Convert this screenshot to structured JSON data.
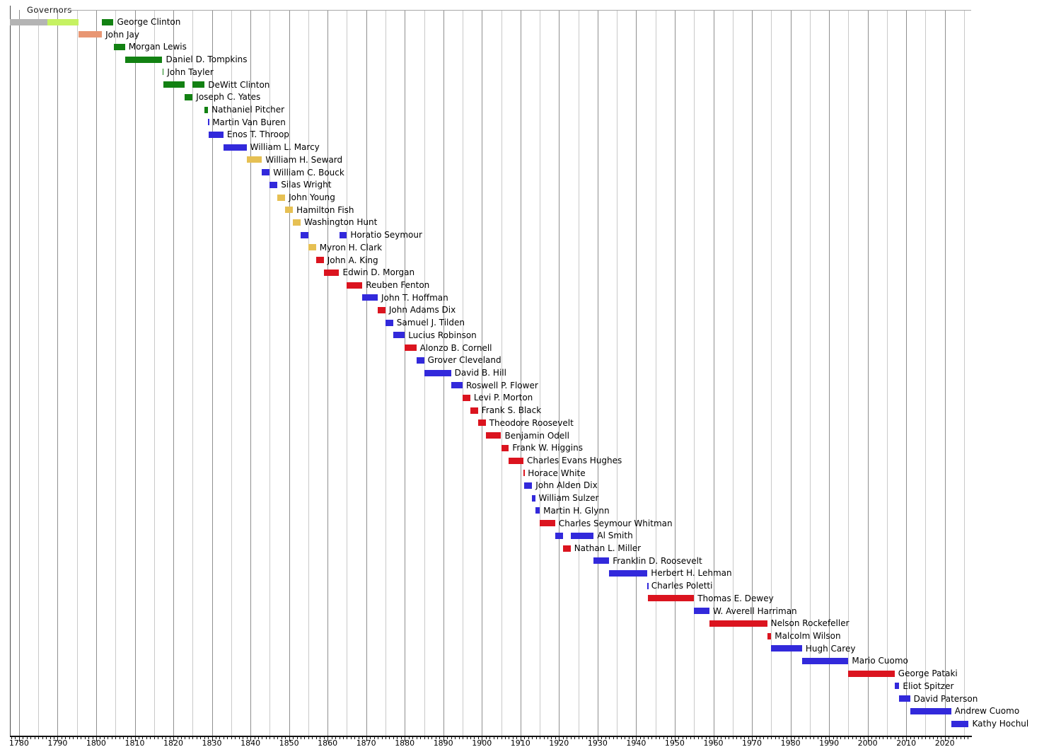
{
  "chart_data": {
    "type": "timeline",
    "title": "Governors",
    "x_axis": {
      "domain": [
        1777.55,
        2026.75
      ],
      "label_start": 1780,
      "label_end": 2020,
      "label_step": 10,
      "grid_step": 5,
      "minor_tick_step": 1,
      "tick_labels": [
        "1780",
        "1790",
        "1800",
        "1810",
        "1820",
        "1830",
        "1840",
        "1850",
        "1860",
        "1870",
        "1880",
        "1890",
        "1900",
        "1910",
        "1920",
        "1930",
        "1940",
        "1950",
        "1960",
        "1970",
        "1980",
        "1990",
        "2000",
        "2010",
        "2020"
      ]
    },
    "party_colors": {
      "independent": "#B4B4B4",
      "anti_federalist": "#C6F262",
      "federalist": "#E89673",
      "democratic_republican": "#128112",
      "democratic": "#3229DB",
      "whig": "#E6C053",
      "republican": "#DB141F"
    },
    "governors": [
      {
        "name": "George Clinton",
        "terms": [
          {
            "from": 1777.58,
            "till": 1787.3,
            "party": "independent"
          },
          {
            "from": 1787.3,
            "till": 1795.5,
            "party": "anti_federalist"
          },
          {
            "from": 1801.5,
            "till": 1804.5,
            "party": "democratic_republican"
          }
        ]
      },
      {
        "name": "John Jay",
        "terms": [
          {
            "from": 1795.5,
            "till": 1801.5,
            "party": "federalist"
          }
        ]
      },
      {
        "name": "Morgan Lewis",
        "terms": [
          {
            "from": 1804.5,
            "till": 1807.5,
            "party": "democratic_republican"
          }
        ]
      },
      {
        "name": "Daniel D. Tompkins",
        "terms": [
          {
            "from": 1807.5,
            "till": 1817.15,
            "party": "democratic_republican"
          }
        ]
      },
      {
        "name": "John Tayler",
        "terms": [
          {
            "from": 1817.15,
            "till": 1817.5,
            "party": "democratic_republican"
          }
        ]
      },
      {
        "name": "DeWitt Clinton",
        "terms": [
          {
            "from": 1817.5,
            "till": 1823.0,
            "party": "democratic_republican"
          },
          {
            "from": 1825.0,
            "till": 1828.12,
            "party": "democratic_republican"
          }
        ]
      },
      {
        "name": "Joseph C. Yates",
        "terms": [
          {
            "from": 1823.0,
            "till": 1825.0,
            "party": "democratic_republican"
          }
        ]
      },
      {
        "name": "Nathaniel Pitcher",
        "terms": [
          {
            "from": 1828.12,
            "till": 1829.0,
            "party": "democratic_republican"
          }
        ]
      },
      {
        "name": "Martin Van Buren",
        "terms": [
          {
            "from": 1829.0,
            "till": 1829.2,
            "party": "democratic"
          }
        ]
      },
      {
        "name": "Enos T. Throop",
        "terms": [
          {
            "from": 1829.2,
            "till": 1833.0,
            "party": "democratic"
          }
        ]
      },
      {
        "name": "William L. Marcy",
        "terms": [
          {
            "from": 1833.0,
            "till": 1839.0,
            "party": "democratic"
          }
        ]
      },
      {
        "name": "William H. Seward",
        "terms": [
          {
            "from": 1839.0,
            "till": 1843.0,
            "party": "whig"
          }
        ]
      },
      {
        "name": "William C. Bouck",
        "terms": [
          {
            "from": 1843.0,
            "till": 1845.0,
            "party": "democratic"
          }
        ]
      },
      {
        "name": "Silas Wright",
        "terms": [
          {
            "from": 1845.0,
            "till": 1847.0,
            "party": "democratic"
          }
        ]
      },
      {
        "name": "John Young",
        "terms": [
          {
            "from": 1847.0,
            "till": 1849.0,
            "party": "whig"
          }
        ]
      },
      {
        "name": "Hamilton Fish",
        "terms": [
          {
            "from": 1849.0,
            "till": 1851.0,
            "party": "whig"
          }
        ]
      },
      {
        "name": "Washington Hunt",
        "terms": [
          {
            "from": 1851.0,
            "till": 1853.0,
            "party": "whig"
          }
        ]
      },
      {
        "name": "Horatio Seymour",
        "terms": [
          {
            "from": 1853.0,
            "till": 1855.0,
            "party": "democratic"
          },
          {
            "from": 1863.0,
            "till": 1865.0,
            "party": "democratic"
          }
        ]
      },
      {
        "name": "Myron H. Clark",
        "terms": [
          {
            "from": 1855.0,
            "till": 1857.0,
            "party": "whig"
          }
        ]
      },
      {
        "name": "John A. King",
        "terms": [
          {
            "from": 1857.0,
            "till": 1859.0,
            "party": "republican"
          }
        ]
      },
      {
        "name": "Edwin D. Morgan",
        "terms": [
          {
            "from": 1859.0,
            "till": 1863.0,
            "party": "republican"
          }
        ]
      },
      {
        "name": "Reuben Fenton",
        "terms": [
          {
            "from": 1865.0,
            "till": 1869.0,
            "party": "republican"
          }
        ]
      },
      {
        "name": "John T. Hoffman",
        "terms": [
          {
            "from": 1869.0,
            "till": 1873.0,
            "party": "democratic"
          }
        ]
      },
      {
        "name": "John Adams Dix",
        "terms": [
          {
            "from": 1873.0,
            "till": 1875.0,
            "party": "republican"
          }
        ]
      },
      {
        "name": "Samuel J. Tilden",
        "terms": [
          {
            "from": 1875.0,
            "till": 1877.0,
            "party": "democratic"
          }
        ]
      },
      {
        "name": "Lucius Robinson",
        "terms": [
          {
            "from": 1877.0,
            "till": 1880.0,
            "party": "democratic"
          }
        ]
      },
      {
        "name": "Alonzo B. Cornell",
        "terms": [
          {
            "from": 1880.0,
            "till": 1883.0,
            "party": "republican"
          }
        ]
      },
      {
        "name": "Grover Cleveland",
        "terms": [
          {
            "from": 1883.0,
            "till": 1885.02,
            "party": "democratic"
          }
        ]
      },
      {
        "name": "David B. Hill",
        "terms": [
          {
            "from": 1885.02,
            "till": 1892.0,
            "party": "democratic"
          }
        ]
      },
      {
        "name": "Roswell P. Flower",
        "terms": [
          {
            "from": 1892.0,
            "till": 1895.0,
            "party": "democratic"
          }
        ]
      },
      {
        "name": "Levi P. Morton",
        "terms": [
          {
            "from": 1895.0,
            "till": 1897.0,
            "party": "republican"
          }
        ]
      },
      {
        "name": "Frank S. Black",
        "terms": [
          {
            "from": 1897.0,
            "till": 1899.0,
            "party": "republican"
          }
        ]
      },
      {
        "name": "Theodore Roosevelt",
        "terms": [
          {
            "from": 1899.0,
            "till": 1901.0,
            "party": "republican"
          }
        ]
      },
      {
        "name": "Benjamin Odell",
        "terms": [
          {
            "from": 1901.0,
            "till": 1905.0,
            "party": "republican"
          }
        ]
      },
      {
        "name": "Frank W. Higgins",
        "terms": [
          {
            "from": 1905.0,
            "till": 1907.0,
            "party": "republican"
          }
        ]
      },
      {
        "name": "Charles Evans Hughes",
        "terms": [
          {
            "from": 1907.0,
            "till": 1910.77,
            "party": "republican"
          }
        ]
      },
      {
        "name": "Horace White",
        "terms": [
          {
            "from": 1910.77,
            "till": 1911.0,
            "party": "republican"
          }
        ]
      },
      {
        "name": "John Alden Dix",
        "terms": [
          {
            "from": 1911.0,
            "till": 1913.0,
            "party": "democratic"
          }
        ]
      },
      {
        "name": "William Sulzer",
        "terms": [
          {
            "from": 1913.0,
            "till": 1913.8,
            "party": "democratic"
          }
        ]
      },
      {
        "name": "Martin H. Glynn",
        "terms": [
          {
            "from": 1913.8,
            "till": 1915.0,
            "party": "democratic"
          }
        ]
      },
      {
        "name": "Charles Seymour Whitman",
        "terms": [
          {
            "from": 1915.0,
            "till": 1919.0,
            "party": "republican"
          }
        ]
      },
      {
        "name": "Al Smith",
        "terms": [
          {
            "from": 1919.0,
            "till": 1921.0,
            "party": "democratic"
          },
          {
            "from": 1923.0,
            "till": 1929.0,
            "party": "democratic"
          }
        ]
      },
      {
        "name": "Nathan L. Miller",
        "terms": [
          {
            "from": 1921.0,
            "till": 1923.0,
            "party": "republican"
          }
        ]
      },
      {
        "name": "Franklin D. Roosevelt",
        "terms": [
          {
            "from": 1929.0,
            "till": 1933.0,
            "party": "democratic"
          }
        ]
      },
      {
        "name": "Herbert H. Lehman",
        "terms": [
          {
            "from": 1933.0,
            "till": 1942.92,
            "party": "democratic"
          }
        ]
      },
      {
        "name": "Charles Poletti",
        "terms": [
          {
            "from": 1942.92,
            "till": 1943.0,
            "party": "democratic"
          }
        ]
      },
      {
        "name": "Thomas E. Dewey",
        "terms": [
          {
            "from": 1943.0,
            "till": 1955.0,
            "party": "republican"
          }
        ]
      },
      {
        "name": "W. Averell Harriman",
        "terms": [
          {
            "from": 1955.0,
            "till": 1959.0,
            "party": "democratic"
          }
        ]
      },
      {
        "name": "Nelson Rockefeller",
        "terms": [
          {
            "from": 1959.0,
            "till": 1973.96,
            "party": "republican"
          }
        ]
      },
      {
        "name": "Malcolm Wilson",
        "terms": [
          {
            "from": 1973.96,
            "till": 1975.0,
            "party": "republican"
          }
        ]
      },
      {
        "name": "Hugh Carey",
        "terms": [
          {
            "from": 1975.0,
            "till": 1983.0,
            "party": "democratic"
          }
        ]
      },
      {
        "name": "Mario Cuomo",
        "terms": [
          {
            "from": 1983.0,
            "till": 1995.0,
            "party": "democratic"
          }
        ]
      },
      {
        "name": "George Pataki",
        "terms": [
          {
            "from": 1995.0,
            "till": 2007.0,
            "party": "republican"
          }
        ]
      },
      {
        "name": "Eliot Spitzer",
        "terms": [
          {
            "from": 2007.0,
            "till": 2008.21,
            "party": "democratic"
          }
        ]
      },
      {
        "name": "David Paterson",
        "terms": [
          {
            "from": 2008.21,
            "till": 2011.0,
            "party": "democratic"
          }
        ]
      },
      {
        "name": "Andrew Cuomo",
        "terms": [
          {
            "from": 2011.0,
            "till": 2021.65,
            "party": "democratic"
          }
        ]
      },
      {
        "name": "Kathy Hochul",
        "terms": [
          {
            "from": 2021.65,
            "till": 2026.2,
            "party": "democratic"
          }
        ]
      }
    ]
  }
}
